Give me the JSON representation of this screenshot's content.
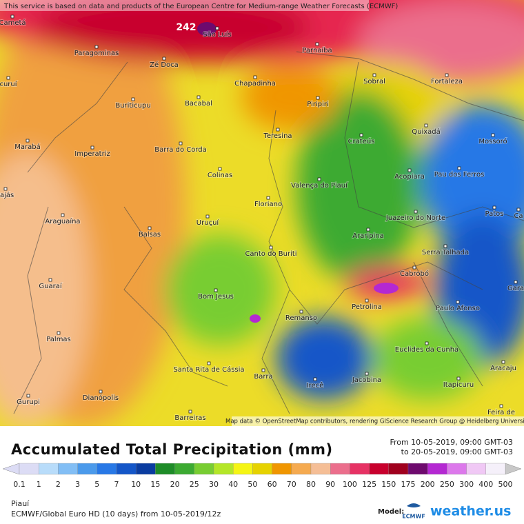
{
  "map": {
    "attribution_top": "This service is based on data and products of the European Centre for Medium-range Weather Forecasts (ECMWF)",
    "max_label": "242",
    "cities": [
      "Cametá",
      "São Luís",
      "Paragominas",
      "Parnaíba",
      "Zé Doca",
      "Fortaleza",
      "Sobral",
      "Chapadinha",
      "curuí",
      "Buriticupu",
      "Bacabal",
      "Piripiri",
      "Quixadá",
      "Teresina",
      "Crateús",
      "Mossoró",
      "Marabá",
      "Imperatriz",
      "Barra do Corda",
      "Colinas",
      "Valença do Piauí",
      "Pau dos Ferros",
      "Acopiara",
      "Floriano",
      "Araguaína",
      "Juazeiro do Norte",
      "Patos",
      "Uruçuí",
      "Balsas",
      "Araripina",
      "Canto do Buriti",
      "Serra Talhada",
      "Cabrobó",
      "Guaraí",
      "Bom Jesus",
      "Petrolina",
      "Paulo Afonso",
      "Remanso",
      "Palmas",
      "Euclides da Cunha",
      "Santa Rita de Cássia",
      "Aracaju",
      "Barra",
      "Irecê",
      "Jacobina",
      "Itapicuru",
      "Dianópolis",
      "Gurupi",
      "Barreiras",
      "Feira de",
      "rajás",
      "Ca",
      "Gara"
    ],
    "credits": "Map data © OpenStreetMap contributors, rendering GIScience Research Group @ Heidelberg University"
  },
  "legend": {
    "title": "Accumulated Total Precipitation (mm)",
    "from": "From 10-05-2019, 09:00 GMT-03",
    "to": "to 20-05-2019, 09:00 GMT-03",
    "labels": [
      "0.1",
      "1",
      "2",
      "3",
      "5",
      "7",
      "10",
      "15",
      "20",
      "25",
      "30",
      "40",
      "50",
      "60",
      "70",
      "80",
      "90",
      "100",
      "125",
      "150",
      "175",
      "200",
      "250",
      "300",
      "400",
      "500"
    ],
    "colors": [
      "#dcdcf5",
      "#b8dcfa",
      "#82bef5",
      "#4b9aeb",
      "#2878e6",
      "#1456c8",
      "#0a3ca0",
      "#1e8c28",
      "#3caa32",
      "#78cd32",
      "#b4e628",
      "#f5f514",
      "#e6d200",
      "#f09600",
      "#f5aa50",
      "#f5be96",
      "#eb6e8c",
      "#e63264",
      "#c8002d",
      "#a0001e",
      "#6e0a6e",
      "#b428d2",
      "#dc78eb",
      "#f0c8f5",
      "#f5f0fa"
    ],
    "region": "Piauí",
    "model_run": "ECMWF/Global Euro HD (10 days) from 10-05-2019/12z",
    "model_label": "Model:",
    "ecmwf": "ECMWF",
    "brand": "weather.us"
  }
}
